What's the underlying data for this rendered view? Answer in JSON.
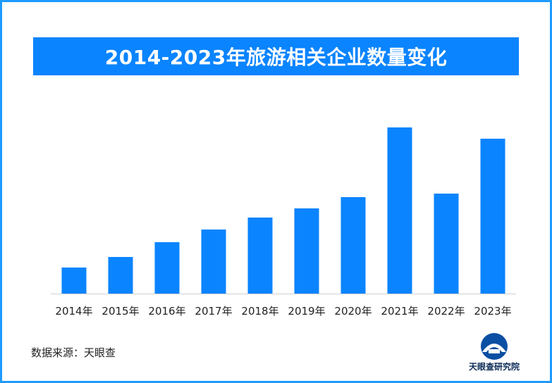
{
  "title": "2014-2023年旅游相关企业数量变化",
  "source": "数据来源：天眼查",
  "brand": {
    "name": "天眼查研究院",
    "logo_icon": "tianyancha-logo-icon"
  },
  "colors": {
    "bar": "#0a84ff",
    "title_band": "#0a84ff",
    "frame": "#1e9bff",
    "axis": "#d0d0d0"
  },
  "chart_data": {
    "type": "bar",
    "categories": [
      "2014年",
      "2015年",
      "2016年",
      "2017年",
      "2018年",
      "2019年",
      "2020年",
      "2021年",
      "2022年",
      "2023年"
    ],
    "values": [
      37,
      52,
      73,
      91,
      108,
      121,
      137,
      236,
      142,
      220
    ],
    "title": "2014-2023年旅游相关企业数量变化",
    "xlabel": "",
    "ylabel": "",
    "ylim": [
      0,
      250
    ],
    "grid": false,
    "legend": "none"
  }
}
